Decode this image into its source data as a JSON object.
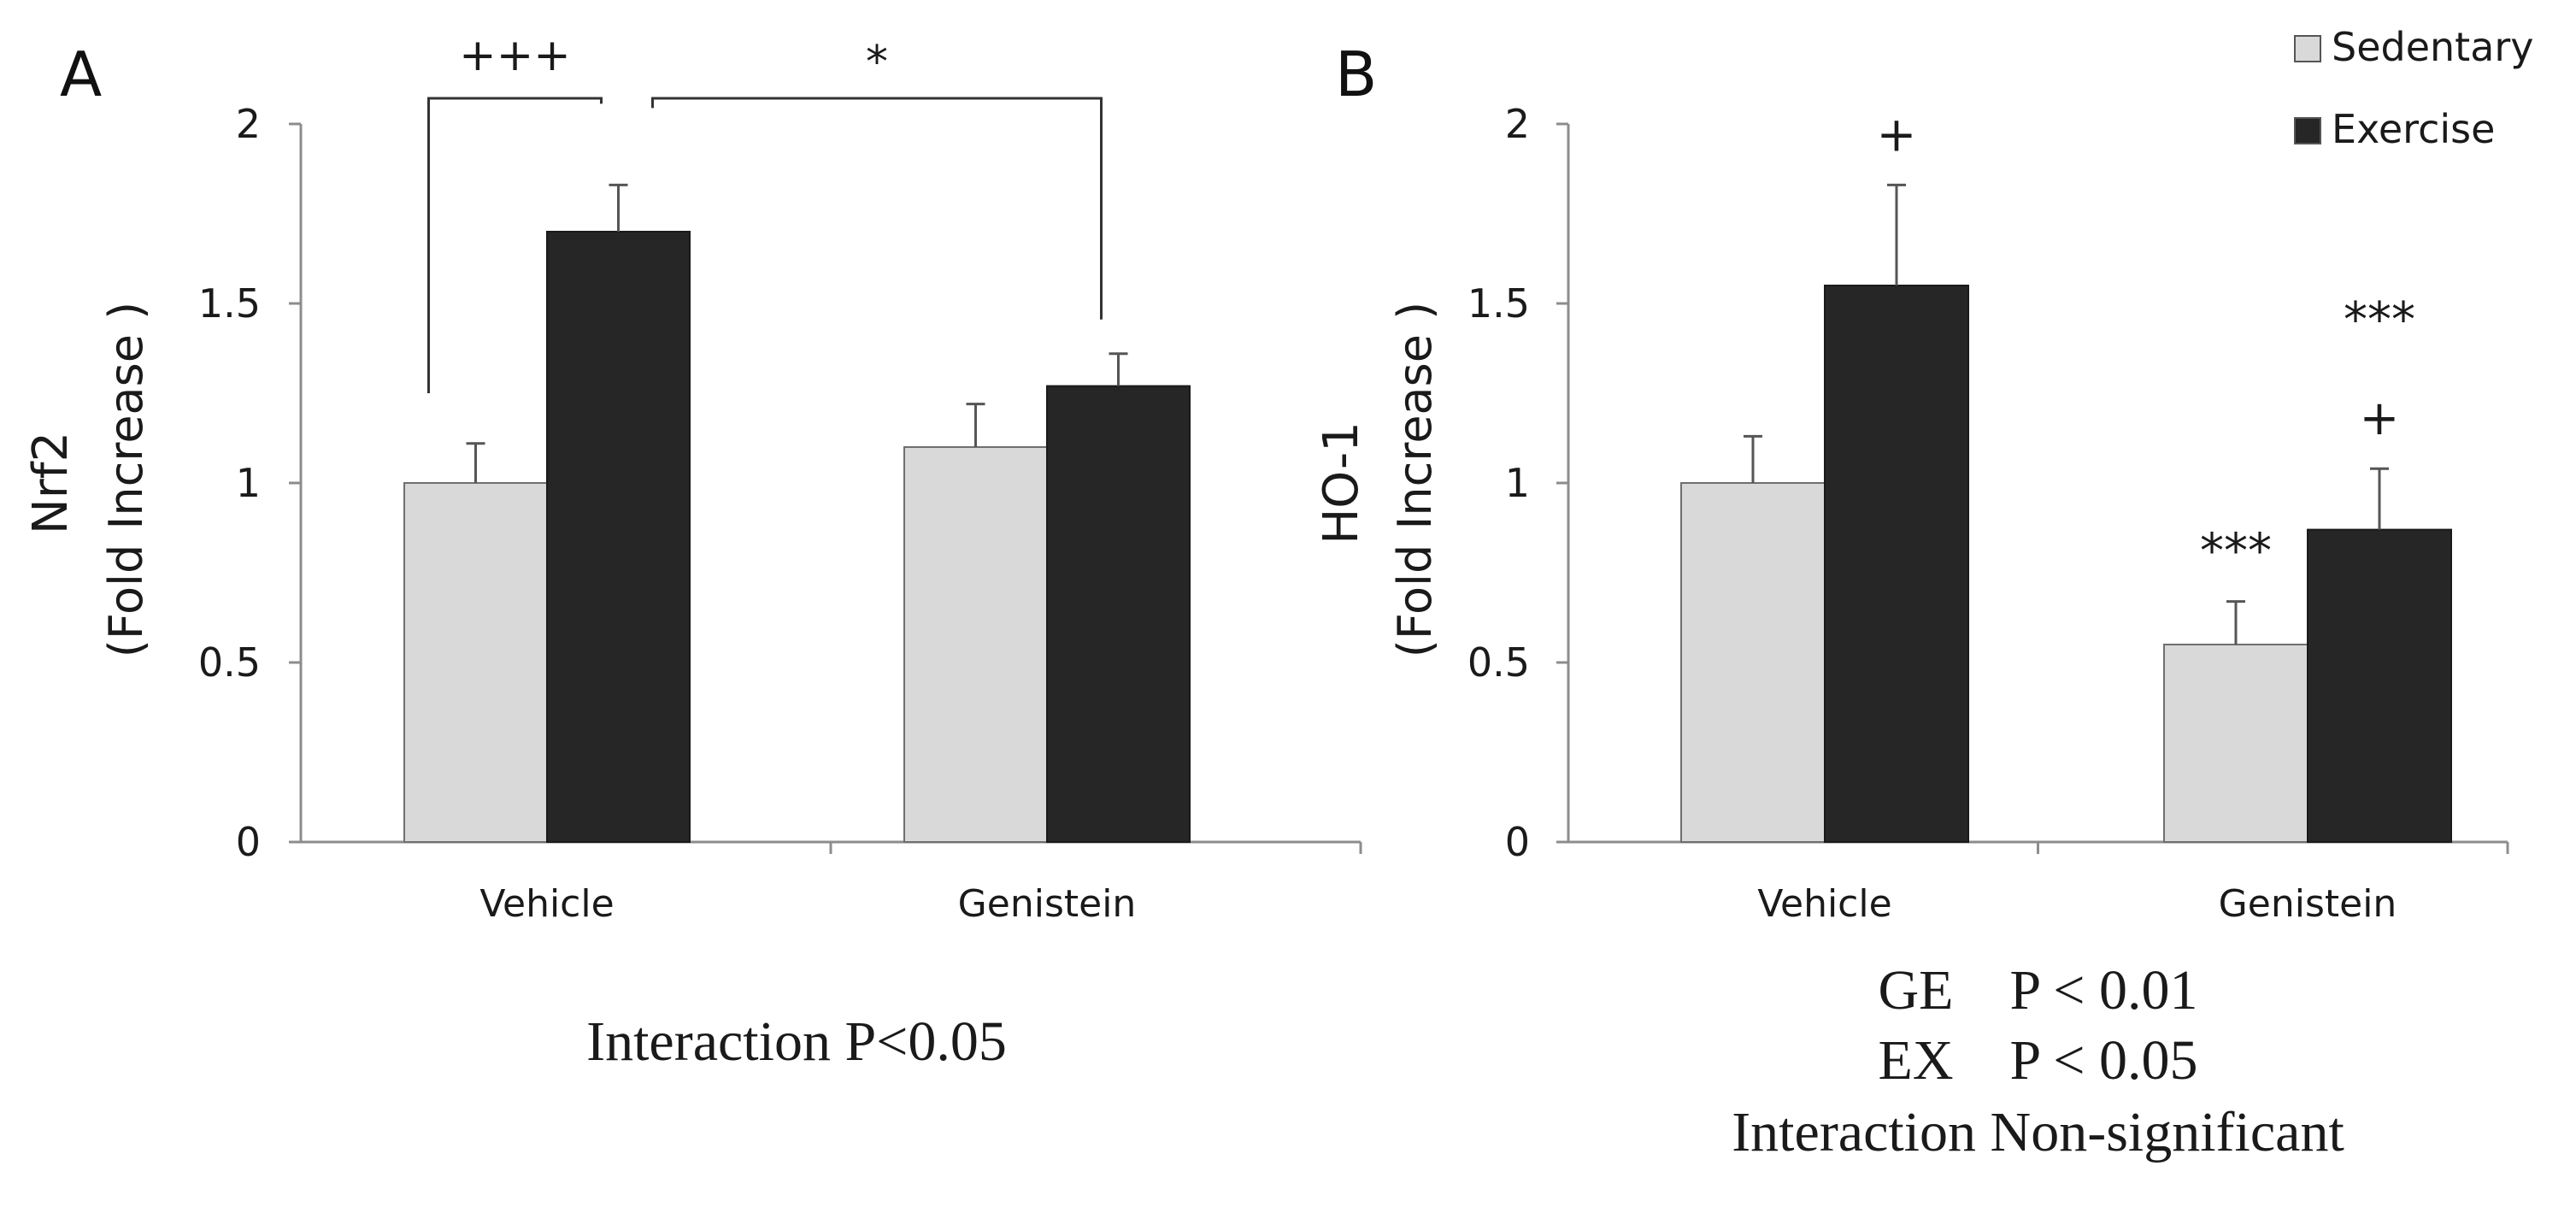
{
  "legend": {
    "position": "top-right",
    "entries": [
      {
        "name": "Sedentary",
        "color": "#d9d9d9"
      },
      {
        "name": "Exercise",
        "color": "#262626"
      }
    ]
  },
  "chart_data": [
    {
      "panel": "A",
      "type": "bar",
      "title": "",
      "xlabel": "",
      "ylabel": "Nrf2",
      "ylabel_sub": "(Fold Increase )",
      "ylim": [
        0,
        2
      ],
      "yticks": [
        "0",
        "0.5",
        "1",
        "1.5",
        "2"
      ],
      "categories": [
        "Vehicle",
        "Genistein"
      ],
      "series": [
        {
          "name": "Sedentary",
          "color": "#d9d9d9",
          "values": [
            1.0,
            1.1
          ],
          "errors": [
            0.11,
            0.12
          ]
        },
        {
          "name": "Exercise",
          "color": "#262626",
          "values": [
            1.7,
            1.27
          ],
          "errors": [
            0.13,
            0.09
          ]
        }
      ],
      "brackets": [
        {
          "label": "+++",
          "from": {
            "category": 0,
            "series": 0
          },
          "to": {
            "category": 0,
            "series": 1
          }
        },
        {
          "label": "*",
          "from": {
            "category": 0,
            "series": 1
          },
          "to": {
            "category": 1,
            "series": 1
          }
        }
      ],
      "bar_annotations": [],
      "stats": [
        "Interaction P<0.05"
      ]
    },
    {
      "panel": "B",
      "type": "bar",
      "title": "",
      "xlabel": "",
      "ylabel": "HO-1",
      "ylabel_sub": "(Fold Increase )",
      "ylim": [
        0,
        2
      ],
      "yticks": [
        "0",
        "0.5",
        "1",
        "1.5",
        "2"
      ],
      "categories": [
        "Vehicle",
        "Genistein"
      ],
      "series": [
        {
          "name": "Sedentary",
          "color": "#d9d9d9",
          "values": [
            1.0,
            0.55
          ],
          "errors": [
            0.13,
            0.12
          ]
        },
        {
          "name": "Exercise",
          "color": "#262626",
          "values": [
            1.55,
            0.87
          ],
          "errors": [
            0.28,
            0.17
          ]
        }
      ],
      "brackets": [],
      "bar_annotations": [
        {
          "category": 0,
          "series": 1,
          "labels": [
            "+"
          ]
        },
        {
          "category": 1,
          "series": 0,
          "labels": [
            "***"
          ]
        },
        {
          "category": 1,
          "series": 1,
          "labels": [
            "+",
            "***"
          ]
        }
      ],
      "stats": [
        "GE    P < 0.01",
        "EX    P < 0.05",
        "Interaction Non-significant"
      ]
    }
  ]
}
